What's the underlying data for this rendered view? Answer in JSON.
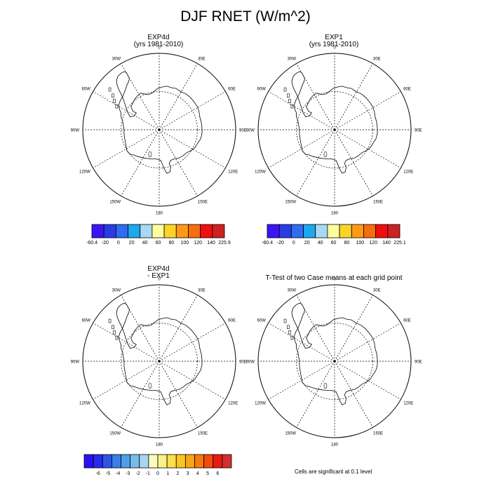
{
  "main_title": "DJF RNET (W/m^2)",
  "panels": [
    {
      "title_line1": "EXP4d",
      "title_line2": "(yrs 1981-2010)"
    },
    {
      "title_line1": "EXP1",
      "title_line2": "(yrs 1981-2010)"
    },
    {
      "title_line1": "EXP4d",
      "title_line2": "- EXP1"
    },
    {
      "title_line1": "T-Test of two Case means at each grid point",
      "title_line2": ""
    }
  ],
  "map_labels": [
    "0",
    "30E",
    "60E",
    "90E",
    "120E",
    "150E",
    "180",
    "150W",
    "120W",
    "90W",
    "60W",
    "30W"
  ],
  "colorbars": [
    {
      "colors": [
        "#3a16f5",
        "#2a3be6",
        "#2f6cf0",
        "#1ea6ee",
        "#a8d8f2",
        "#fdfd9e",
        "#fbd42a",
        "#fc9a18",
        "#f66d0e",
        "#f20e0e",
        "#cc2222"
      ],
      "labels": [
        "-60.4",
        "-20",
        "0",
        "20",
        "40",
        "60",
        "80",
        "100",
        "120",
        "140",
        "225.9"
      ]
    },
    {
      "colors": [
        "#3a16f5",
        "#2a3be6",
        "#2f6cf0",
        "#1ea6ee",
        "#a8d8f2",
        "#fdfd9e",
        "#fbd42a",
        "#fc9a18",
        "#f66d0e",
        "#f20e0e",
        "#cc2222"
      ],
      "labels": [
        "-60.4",
        "-20",
        "0",
        "20",
        "40",
        "60",
        "80",
        "100",
        "120",
        "140",
        "225.1"
      ]
    },
    {
      "colors": [
        "#2b10f0",
        "#2a2aee",
        "#2f55e8",
        "#3a7ee6",
        "#4e9ee8",
        "#76bce9",
        "#a6d6f0",
        "#fbfbbe",
        "#fbf18a",
        "#fbde49",
        "#f9c520",
        "#f8a514",
        "#f6790c",
        "#f24c0a",
        "#ea1a10",
        "#d23030"
      ],
      "labels": [
        "-6",
        "-5",
        "-4",
        "-3",
        "-2",
        "-1",
        "0",
        "1",
        "2",
        "3",
        "4",
        "5",
        "6"
      ]
    }
  ],
  "footnote": "Cells are significant at 0.1 level"
}
